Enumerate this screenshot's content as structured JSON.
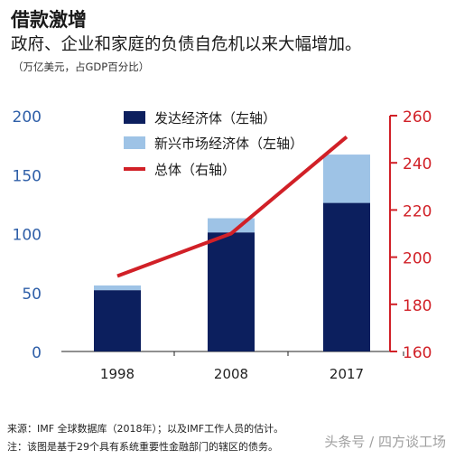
{
  "header": {
    "title": "借款激增",
    "subtitle": "政府、企业和家庭的负债自危机以来大幅增加。",
    "unit_note": "（万亿美元，占GDP百分比）"
  },
  "footer": {
    "source": "来源：IMF 全球数据库（2018年）；以及IMF工作人员的估计。",
    "note": "注：该图是基于29个具有系统重要性金融部门的辖区的债务。"
  },
  "watermark": "头条号 / 四方谈工场",
  "colors": {
    "advanced": "#0c1f5e",
    "emerging": "#9ec3e6",
    "total_line": "#d12027",
    "left_axis": "#2f5fa8",
    "right_axis": "#d12027"
  },
  "chart_data": {
    "type": "bar",
    "categories": [
      "1998",
      "2008",
      "2017"
    ],
    "series": [
      {
        "name": "发达经济体（左轴）",
        "type": "bar",
        "axis": "left",
        "values": [
          52,
          101,
          126
        ]
      },
      {
        "name": "新兴市场经济体（左轴）",
        "type": "bar",
        "axis": "left",
        "values": [
          4,
          12,
          41
        ]
      },
      {
        "name": "总体（右轴）",
        "type": "line",
        "axis": "right",
        "values": [
          192,
          210,
          251
        ]
      }
    ],
    "stacked": true,
    "ylim_left": [
      0,
      200
    ],
    "yticks_left": [
      0,
      50,
      100,
      150,
      200
    ],
    "ylim_right": [
      160,
      260
    ],
    "yticks_right": [
      160,
      180,
      200,
      220,
      240,
      260
    ],
    "legend": "top-center",
    "grid": false
  }
}
